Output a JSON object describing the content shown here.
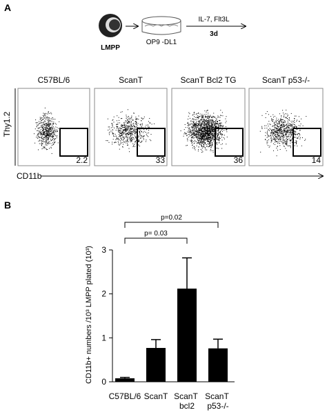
{
  "panel_a": {
    "label": "A",
    "cell": "LMPP",
    "dish": "OP9 -DL1",
    "treatment": "IL-7, Flt3L",
    "duration": "3d",
    "plots": [
      {
        "title": "C57BL/6",
        "gate": 2.2
      },
      {
        "title": "ScanT",
        "gate": 33
      },
      {
        "title": "ScanT Bcl2 TG",
        "gate": 36
      },
      {
        "title": "ScanT p53-/-",
        "gate": 14
      }
    ],
    "ylabel": "Thy1.2",
    "xlabel": "CD11b"
  },
  "chart_data": {
    "type": "bar",
    "panel": "B",
    "categories": [
      "C57BL/6",
      "ScanT",
      "ScanT bcl2",
      "ScanT p53-/-"
    ],
    "values": [
      0.08,
      0.77,
      2.12,
      0.76
    ],
    "errors": [
      0.02,
      0.19,
      0.7,
      0.21
    ],
    "color": "#000000",
    "ylim": [
      0,
      3
    ],
    "yticks": [
      0,
      1,
      2,
      3
    ],
    "ylabel": "CD11b+ numbers /10³ LMPP plated (10³)",
    "annotations": [
      {
        "text": "p= 0.03",
        "from": 0,
        "to": 2
      },
      {
        "text": "p=0.02",
        "from": 0,
        "to": 3
      }
    ]
  }
}
